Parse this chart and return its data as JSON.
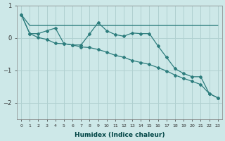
{
  "xlabel": "Humidex (Indice chaleur)",
  "background_color": "#cde8e8",
  "grid_color": "#b0d0d0",
  "line_color": "#2d7d7d",
  "x": [
    0,
    1,
    2,
    3,
    4,
    5,
    6,
    7,
    8,
    9,
    10,
    11,
    12,
    13,
    14,
    15,
    16,
    17,
    18,
    19,
    20,
    21,
    22,
    23
  ],
  "line_flat": [
    0.72,
    0.38,
    0.38,
    0.38,
    0.38,
    0.38,
    0.38,
    0.38,
    0.38,
    0.38,
    0.38,
    0.38,
    0.38,
    0.38,
    0.38,
    0.38,
    0.38,
    0.38,
    0.38,
    0.38,
    0.38,
    0.38,
    0.38,
    0.38
  ],
  "line_wavy": [
    0.72,
    0.13,
    0.13,
    0.22,
    0.3,
    -0.18,
    -0.22,
    -0.22,
    0.12,
    0.47,
    0.22,
    0.1,
    0.05,
    0.15,
    0.13,
    0.13,
    -0.25,
    -0.6,
    -0.95,
    -1.1,
    -1.2,
    -1.2,
    -1.72,
    -1.85
  ],
  "line_diag": [
    0.72,
    0.13,
    0.01,
    -0.05,
    -0.17,
    -0.18,
    -0.22,
    -0.28,
    -0.3,
    -0.36,
    -0.44,
    -0.54,
    -0.6,
    -0.7,
    -0.76,
    -0.82,
    -0.92,
    -1.02,
    -1.15,
    -1.25,
    -1.34,
    -1.44,
    -1.72,
    -1.85
  ],
  "ylim": [
    -2.5,
    1.0
  ],
  "xlim": [
    -0.5,
    23.5
  ],
  "yticks": [
    1,
    0,
    -1,
    -2
  ],
  "figsize": [
    3.2,
    2.0
  ],
  "dpi": 100
}
